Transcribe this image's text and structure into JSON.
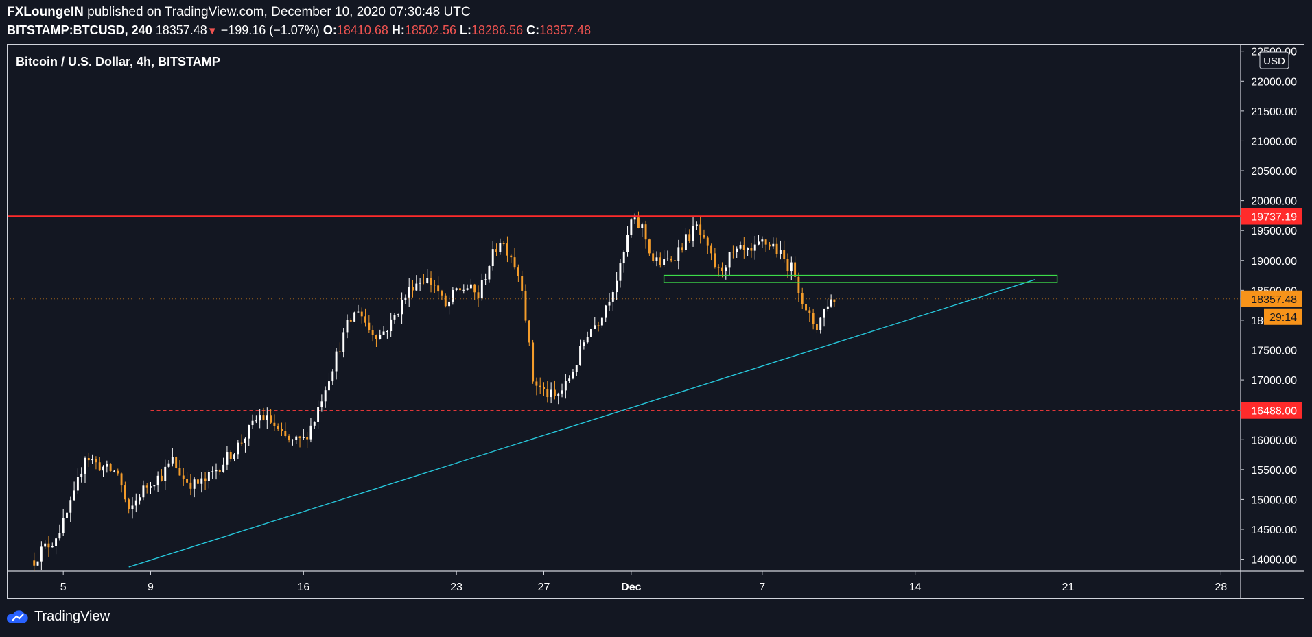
{
  "header": {
    "author": "FXLoungeIN",
    "published": "published on TradingView.com, December 10, 2020 07:30:48 UTC"
  },
  "quote": {
    "symbol": "BITSTAMP:BTCUSD",
    "interval": "240",
    "last": "18357.48",
    "change": "−199.16 (−1.07%)",
    "o_label": "O:",
    "o": "18410.68",
    "h_label": "H:",
    "h": "18502.56",
    "l_label": "L:",
    "l": "18286.56",
    "c_label": "C:",
    "c": "18357.48"
  },
  "footer": {
    "brand": "TradingView"
  },
  "colors": {
    "background": "#131722",
    "up": "#ffffff",
    "down": "#f39c2b",
    "resistance": "#ff2b2b",
    "support_dashed": "#ff3b3b",
    "trendline": "#26c6da",
    "zone": "#3ddc4a",
    "last_price": "#f7931a"
  },
  "chart_data": {
    "type": "candlestick",
    "title": "Bitcoin / U.S. Dollar, 4h, BITSTAMP",
    "currency": "USD",
    "ylim": [
      13800,
      22600
    ],
    "y_ticks": [
      14000,
      14500,
      15000,
      15500,
      16000,
      16500,
      17000,
      17500,
      18000,
      18500,
      19000,
      19500,
      20000,
      20500,
      21000,
      21500,
      22000,
      22500
    ],
    "y_tick_labels": [
      "14000.00",
      "14500.00",
      "15000.00",
      "15500.00",
      "16000.00",
      "16500.00",
      "17000.00",
      "17500.00",
      "18000.00",
      "18500.00",
      "19000.00",
      "19500.00",
      "20000.00",
      "20500.00",
      "21000.00",
      "21500.00",
      "22000.00",
      "22500.00"
    ],
    "x_ticks": [
      {
        "label": "5",
        "day": 5,
        "bold": false
      },
      {
        "label": "9",
        "day": 9,
        "bold": false
      },
      {
        "label": "16",
        "day": 16,
        "bold": false
      },
      {
        "label": "23",
        "day": 23,
        "bold": false
      },
      {
        "label": "27",
        "day": 27,
        "bold": false
      },
      {
        "label": "Dec",
        "day": 31,
        "bold": true
      },
      {
        "label": "7",
        "day": 37,
        "bold": false
      },
      {
        "label": "14",
        "day": 44,
        "bold": false
      },
      {
        "label": "21",
        "day": 51,
        "bold": false
      },
      {
        "label": "28",
        "day": 58,
        "bold": false
      }
    ],
    "xlim": [
      2.45,
      58.9
    ],
    "closes": [
      [
        3.5,
        13900
      ],
      [
        4.0,
        14150
      ],
      [
        4.5,
        14300
      ],
      [
        5.0,
        14600
      ],
      [
        5.5,
        15050
      ],
      [
        6.0,
        15750
      ],
      [
        6.5,
        15600
      ],
      [
        7.0,
        15500
      ],
      [
        7.5,
        15450
      ],
      [
        8.0,
        14750
      ],
      [
        8.5,
        15100
      ],
      [
        9.0,
        15300
      ],
      [
        9.5,
        15400
      ],
      [
        10.0,
        15650
      ],
      [
        10.5,
        15350
      ],
      [
        11.0,
        15250
      ],
      [
        11.5,
        15300
      ],
      [
        12.0,
        15500
      ],
      [
        12.5,
        15700
      ],
      [
        13.0,
        15900
      ],
      [
        13.5,
        16150
      ],
      [
        14.0,
        16400
      ],
      [
        14.5,
        16300
      ],
      [
        15.0,
        16050
      ],
      [
        15.5,
        15950
      ],
      [
        16.0,
        16000
      ],
      [
        16.5,
        16350
      ],
      [
        17.0,
        16900
      ],
      [
        17.5,
        17400
      ],
      [
        18.0,
        17900
      ],
      [
        18.5,
        18200
      ],
      [
        19.0,
        17850
      ],
      [
        19.5,
        17750
      ],
      [
        20.0,
        17950
      ],
      [
        20.5,
        18300
      ],
      [
        21.0,
        18600
      ],
      [
        21.5,
        18700
      ],
      [
        22.0,
        18600
      ],
      [
        22.5,
        18200
      ],
      [
        23.0,
        18500
      ],
      [
        23.5,
        18550
      ],
      [
        24.0,
        18400
      ],
      [
        24.5,
        18950
      ],
      [
        25.0,
        19350
      ],
      [
        25.5,
        19100
      ],
      [
        26.0,
        18600
      ],
      [
        26.5,
        17000
      ],
      [
        27.0,
        16800
      ],
      [
        27.5,
        16700
      ],
      [
        28.0,
        16900
      ],
      [
        28.5,
        17300
      ],
      [
        29.0,
        17800
      ],
      [
        29.5,
        18000
      ],
      [
        30.0,
        18400
      ],
      [
        30.5,
        18850
      ],
      [
        31.0,
        19650
      ],
      [
        31.5,
        19550
      ],
      [
        32.0,
        19000
      ],
      [
        32.5,
        18950
      ],
      [
        33.0,
        19100
      ],
      [
        33.5,
        19350
      ],
      [
        34.0,
        19550
      ],
      [
        34.5,
        19150
      ],
      [
        35.0,
        18800
      ],
      [
        35.5,
        19050
      ],
      [
        36.0,
        19150
      ],
      [
        36.5,
        19100
      ],
      [
        37.0,
        19300
      ],
      [
        37.5,
        19250
      ],
      [
        38.0,
        19000
      ],
      [
        38.5,
        18800
      ],
      [
        39.0,
        18100
      ],
      [
        39.5,
        17900
      ],
      [
        40.0,
        18300
      ],
      [
        40.3,
        18357
      ]
    ],
    "annotations": {
      "resistance_level": 19737.19,
      "resistance_label": "19737.19",
      "support_level": 16488.0,
      "support_label": "16488.00",
      "last_price_label": "18357.48",
      "countdown_label": "29:14",
      "zone": {
        "x0_day": 32.5,
        "x1_day": 50.5,
        "y0": 18630,
        "y1": 18750
      },
      "support_dashed_start_day": 9.0,
      "trendline": {
        "x0_day": 8.0,
        "y0": 13870,
        "x1_day": 49.5,
        "y1": 18680
      }
    }
  }
}
